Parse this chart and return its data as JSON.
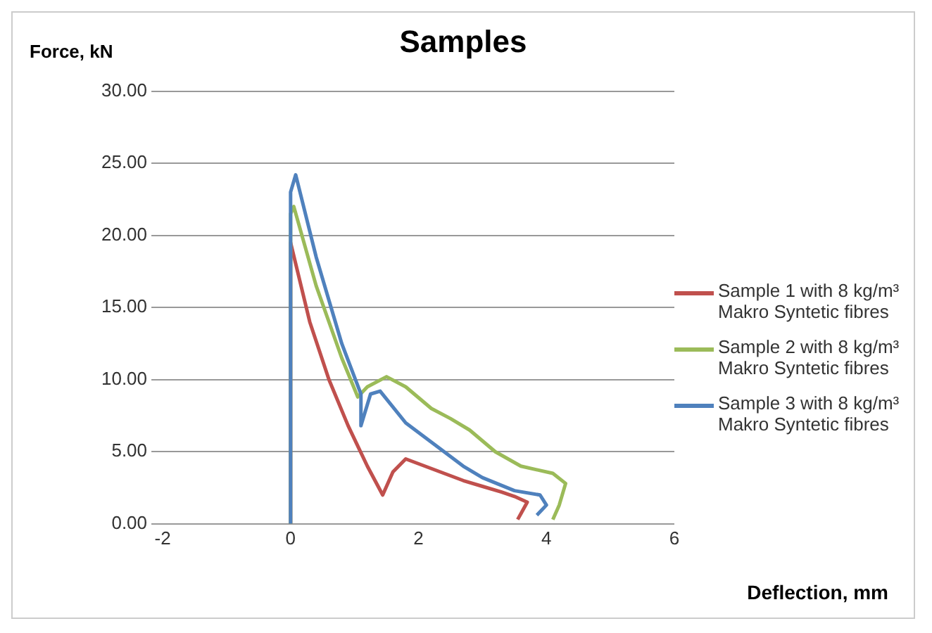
{
  "chart_data": {
    "type": "line",
    "title": "Samples",
    "xlabel": "Deflection, mm",
    "ylabel": "Force, kN",
    "xlim": [
      -2,
      6
    ],
    "xticks": [
      -2,
      0,
      2,
      4,
      6
    ],
    "ylim": [
      0,
      30
    ],
    "yticks": [
      {
        "value": 0,
        "label": "0.00"
      },
      {
        "value": 5,
        "label": "5.00"
      },
      {
        "value": 10,
        "label": "10.00"
      },
      {
        "value": 15,
        "label": "15.00"
      },
      {
        "value": 20,
        "label": "20.00"
      },
      {
        "value": 25,
        "label": "25.00"
      },
      {
        "value": 30,
        "label": "30.00"
      }
    ],
    "grid": "y",
    "legend": "right",
    "marker": "none",
    "series": [
      {
        "name": "Sample 1 with 8 kg/m³ Makro Syntetic fibres",
        "color": "#c0504d",
        "x": [
          0,
          0,
          0.3,
          0.6,
          0.9,
          1.2,
          1.44,
          1.6,
          1.8,
          2.1,
          2.4,
          2.7,
          3.0,
          3.3,
          3.5,
          3.7,
          3.6,
          3.55
        ],
        "values": [
          0,
          19.5,
          14,
          10,
          6.8,
          4,
          2,
          3.6,
          4.5,
          4,
          3.5,
          3,
          2.6,
          2.2,
          1.9,
          1.5,
          0.7,
          0.3
        ]
      },
      {
        "name": "Sample 2 with 8 kg/m³ Makro Syntetic fibres",
        "color": "#9bbb59",
        "x": [
          0,
          0,
          0.05,
          0.4,
          0.8,
          1.05,
          1.2,
          1.5,
          1.8,
          2.2,
          2.5,
          2.8,
          3.2,
          3.6,
          4.1,
          4.3,
          4.2,
          4.1
        ],
        "values": [
          0,
          21.5,
          22,
          16.5,
          11.5,
          8.8,
          9.5,
          10.2,
          9.5,
          8,
          7.3,
          6.5,
          5,
          4,
          3.5,
          2.8,
          1.3,
          0.3
        ]
      },
      {
        "name": "Sample 3 with 8 kg/m³ Makro Syntetic fibres",
        "color": "#4f81bd",
        "x": [
          0,
          0,
          0.08,
          0.4,
          0.8,
          1.1,
          1.1,
          1.25,
          1.4,
          1.8,
          2.1,
          2.4,
          2.7,
          3.0,
          3.5,
          3.9,
          4.0,
          3.85
        ],
        "values": [
          0,
          23,
          24.2,
          18.5,
          12.5,
          9,
          6.8,
          9,
          9.2,
          7,
          6,
          5,
          4,
          3.2,
          2.3,
          2,
          1.3,
          0.6
        ]
      }
    ]
  }
}
